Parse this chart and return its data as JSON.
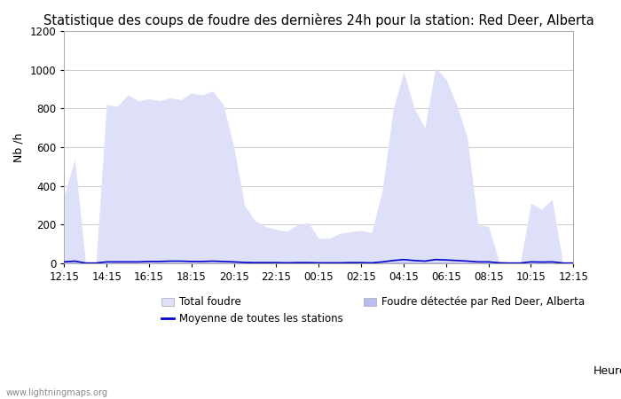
{
  "title": "Statistique des coups de foudre des dernières 24h pour la station: Red Deer, Alberta",
  "ylabel": "Nb /h",
  "xlabel": "Heure",
  "watermark": "www.lightningmaps.org",
  "ylim": [
    0,
    1200
  ],
  "yticks": [
    0,
    200,
    400,
    600,
    800,
    1000,
    1200
  ],
  "xtick_labels": [
    "12:15",
    "14:15",
    "16:15",
    "18:15",
    "20:15",
    "22:15",
    "00:15",
    "02:15",
    "04:15",
    "06:15",
    "08:15",
    "10:15",
    "12:15"
  ],
  "background_color": "#ffffff",
  "plot_bg_color": "#ffffff",
  "grid_color": "#cccccc",
  "fill_total_color": "#dde0f8",
  "fill_local_color": "#b8bdf0",
  "line_color": "#0000cc",
  "total_foudre": [
    350,
    540,
    10,
    5,
    820,
    810,
    870,
    840,
    850,
    840,
    855,
    845,
    880,
    870,
    890,
    820,
    600,
    300,
    220,
    190,
    175,
    165,
    200,
    210,
    130,
    130,
    155,
    165,
    170,
    160,
    380,
    790,
    990,
    800,
    700,
    1010,
    950,
    820,
    650,
    200,
    190,
    10,
    5,
    5,
    310,
    280,
    330,
    5,
    5
  ],
  "local_foudre": [
    5,
    8,
    0,
    0,
    5,
    5,
    5,
    5,
    5,
    5,
    5,
    5,
    5,
    5,
    5,
    5,
    5,
    3,
    3,
    3,
    3,
    3,
    3,
    3,
    2,
    2,
    3,
    3,
    3,
    2,
    5,
    8,
    10,
    8,
    7,
    8,
    8,
    7,
    6,
    5,
    5,
    2,
    0,
    0,
    5,
    5,
    5,
    0,
    0
  ],
  "mean_line": [
    8,
    12,
    2,
    2,
    8,
    8,
    8,
    8,
    10,
    10,
    12,
    12,
    10,
    10,
    12,
    10,
    8,
    5,
    4,
    4,
    4,
    3,
    4,
    4,
    3,
    3,
    3,
    4,
    4,
    3,
    8,
    15,
    20,
    15,
    12,
    20,
    18,
    15,
    12,
    8,
    8,
    3,
    2,
    2,
    8,
    7,
    8,
    2,
    2
  ],
  "legend_total_label": "Total foudre",
  "legend_local_label": "Foudre détectée par Red Deer, Alberta",
  "legend_mean_label": "Moyenne de toutes les stations",
  "title_fontsize": 10.5,
  "axis_fontsize": 9,
  "tick_fontsize": 8.5,
  "legend_fontsize": 8.5
}
